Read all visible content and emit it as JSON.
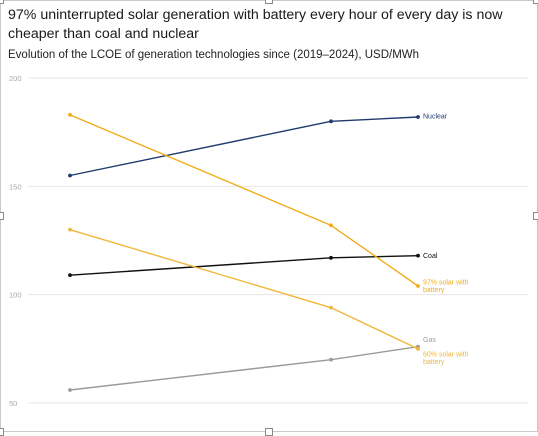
{
  "title": "97% uninterrupted solar generation with battery every hour of every day is now cheaper than coal and nuclear",
  "subtitle": "Evolution of the LCOE of generation technologies since (2019–2024), USD/MWh",
  "chart_data": {
    "type": "line",
    "ylim": [
      50,
      200
    ],
    "yticks": [
      200,
      150,
      100,
      50
    ],
    "x": [
      0,
      1,
      2
    ],
    "grid": true,
    "series": [
      {
        "name": "Nuclear",
        "label_lines": [
          "Nuclear"
        ],
        "color": "#1f3b6e",
        "values": [
          155,
          180,
          182
        ]
      },
      {
        "name": "Coal",
        "label_lines": [
          "Coal"
        ],
        "color": "#111111",
        "values": [
          109,
          117,
          118
        ]
      },
      {
        "name": "97% solar with battery",
        "label_lines": [
          "97% solar with",
          "battery"
        ],
        "color": "#f0ad1a",
        "values": [
          183,
          132,
          104
        ]
      },
      {
        "name": "Gas",
        "label_lines": [
          "Gas"
        ],
        "color": "#9a9a9a",
        "values": [
          56,
          70,
          76
        ]
      },
      {
        "name": "60% solar with battery",
        "label_lines": [
          "60% solar with",
          "battery"
        ],
        "color": "#f0b73a",
        "values": [
          130,
          94,
          75
        ]
      }
    ]
  }
}
